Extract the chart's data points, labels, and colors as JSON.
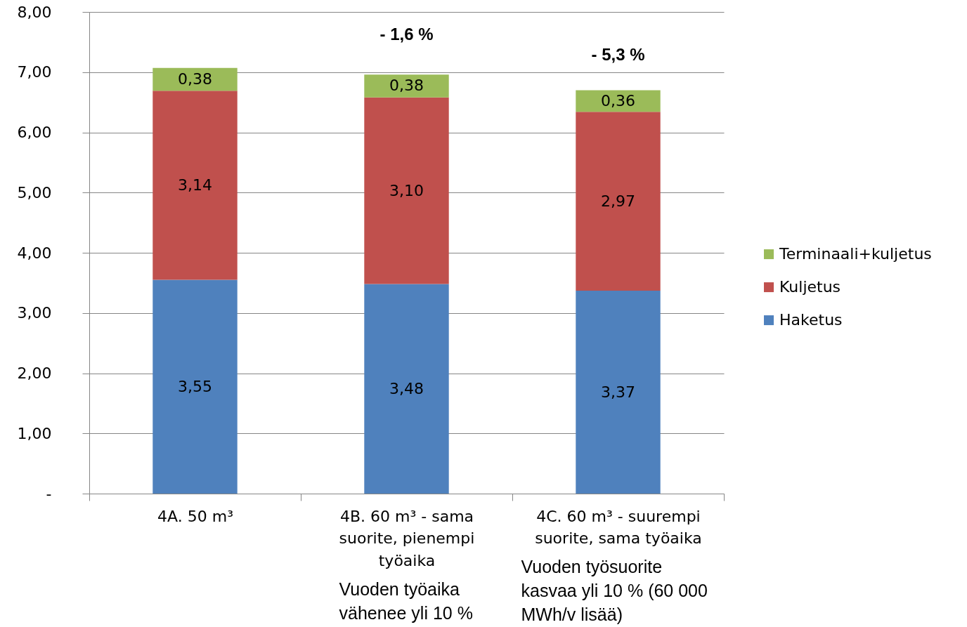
{
  "chart_data": {
    "type": "bar",
    "stacked": true,
    "categories": [
      "4A. 50 m³",
      "4B. 60 m³ - sama suorite, pienempi työaika",
      "4C. 60 m³ - suurempi suorite, sama työaika"
    ],
    "series": [
      {
        "name": "Haketus",
        "color": "#4f81bd",
        "values": [
          3.55,
          3.48,
          3.37
        ],
        "value_labels": [
          "3,55",
          "3,48",
          "3,37"
        ]
      },
      {
        "name": "Kuljetus",
        "color": "#c0504d",
        "values": [
          3.14,
          3.1,
          2.97
        ],
        "value_labels": [
          "3,14",
          "3,10",
          "2,97"
        ]
      },
      {
        "name": "Terminaali+kuljetus",
        "color": "#9bbb59",
        "values": [
          0.38,
          0.38,
          0.36
        ],
        "value_labels": [
          "0,38",
          "0,38",
          "0,36"
        ]
      }
    ],
    "ylim": [
      0,
      8
    ],
    "yticks": [
      {
        "value": 0,
        "label": "-"
      },
      {
        "value": 1,
        "label": "1,00"
      },
      {
        "value": 2,
        "label": "2,00"
      },
      {
        "value": 3,
        "label": "3,00"
      },
      {
        "value": 4,
        "label": "4,00"
      },
      {
        "value": 5,
        "label": "5,00"
      },
      {
        "value": 6,
        "label": "6,00"
      },
      {
        "value": 7,
        "label": "7,00"
      },
      {
        "value": 8,
        "label": "8,00"
      }
    ],
    "grid": "y",
    "legend": "right",
    "annotations": [
      "- 1,6 %",
      "- 5,3 %",
      "Vuoden työaika vähenee yli 10 %",
      "Vuoden työsuorite kasvaa yli 10 % (60 000 MWh/v lisää)"
    ]
  }
}
